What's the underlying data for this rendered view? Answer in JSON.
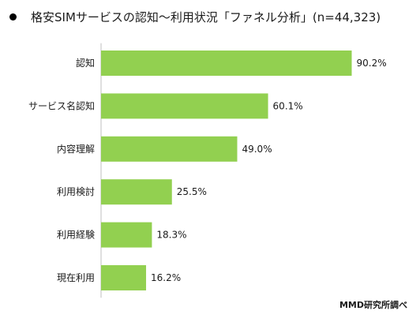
{
  "title": "格安SIMサービスの認知～利用状況「ファネル分析」(n=44,323)",
  "source": "MMD研究所調べ",
  "colors": {
    "bar": "#92d050",
    "axis": "#bfbfbf",
    "bullet": "#000000"
  },
  "chart_data": {
    "type": "bar",
    "orientation": "horizontal",
    "categories": [
      "認知",
      "サービス名認知",
      "内容理解",
      "利用検討",
      "利用経験",
      "現在利用"
    ],
    "values": [
      90.2,
      60.1,
      49.0,
      25.5,
      18.3,
      16.2
    ],
    "value_labels": [
      "90.2%",
      "60.1%",
      "49.0%",
      "25.5%",
      "18.3%",
      "16.2%"
    ],
    "unit": "%",
    "xlim": [
      0,
      100
    ],
    "grid": false,
    "legend": "none"
  }
}
